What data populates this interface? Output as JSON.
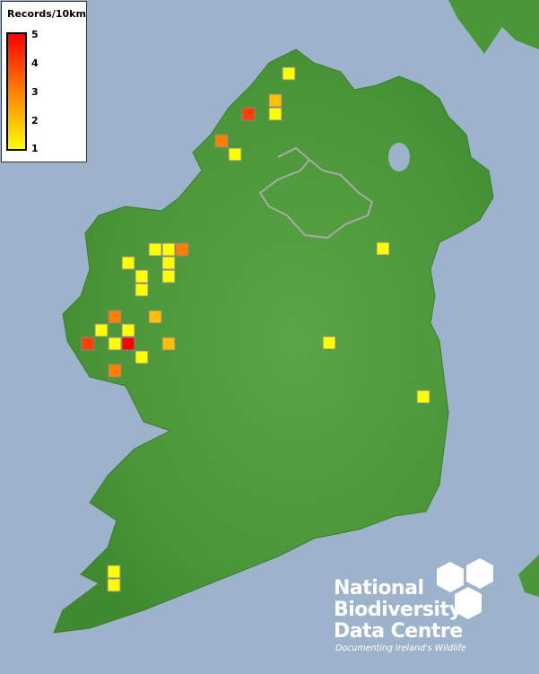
{
  "legend": {
    "title": "Records/10km",
    "ticks": [
      "5",
      "4",
      "3",
      "2",
      "1"
    ],
    "color_low": "#ffff00",
    "color_mid": "#ff8000",
    "color_high": "#ff0000"
  },
  "records": [
    1,
    1,
    3,
    1,
    1,
    1,
    1,
    1,
    3,
    2,
    1,
    1,
    4,
    1,
    5,
    2,
    1,
    3,
    1,
    2,
    1,
    4,
    3,
    1,
    1,
    1,
    1,
    1,
    1
  ],
  "logo": {
    "line1": "National",
    "line2": "Biodiversity",
    "line3": "Data Centre",
    "tagline": "Documenting Ireland's Wildlife"
  },
  "colors": {
    "sea": "#9db3cb",
    "land": "#4f9a3c",
    "border": "#aaaaaa",
    "square_outline": "#888888"
  }
}
